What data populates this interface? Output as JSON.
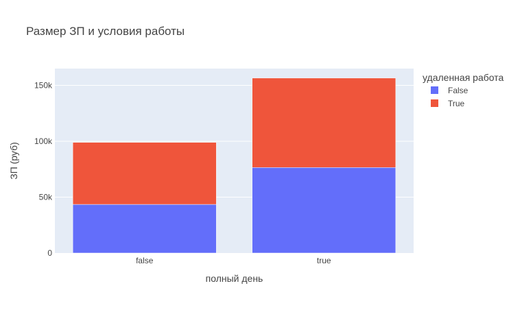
{
  "chart_data": {
    "type": "bar",
    "barmode": "stack",
    "title": "Размер ЗП и условия работы",
    "xlabel": "полный день",
    "ylabel": "ЗП (руб)",
    "categories": [
      "false",
      "true"
    ],
    "series": [
      {
        "name": "False",
        "values": [
          43500,
          76500
        ],
        "color": "#636efa"
      },
      {
        "name": "True",
        "values": [
          55500,
          80000
        ],
        "color": "#ef553b"
      }
    ],
    "ylim": [
      0,
      165000
    ],
    "yticks": [
      0,
      50000,
      100000,
      150000
    ],
    "ytick_labels": [
      "0",
      "50k",
      "100k",
      "150k"
    ],
    "legend": {
      "title": "удаленная работа",
      "position": "right"
    },
    "grid": true,
    "plot_background": "#e5ecf6",
    "grid_color": "#ffffff"
  }
}
